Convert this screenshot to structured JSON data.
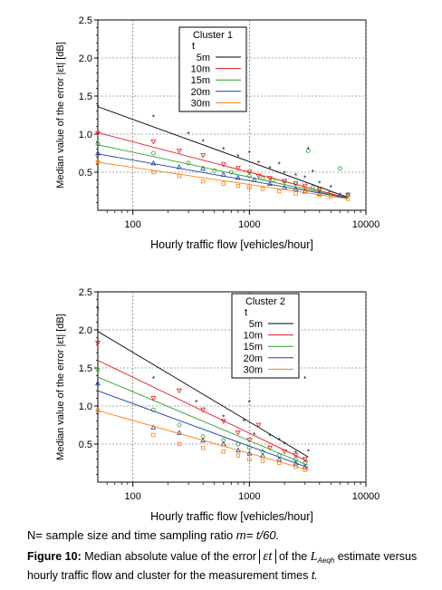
{
  "chart_data": [
    {
      "type": "scatter",
      "xlabel": "Hourly traffic flow [vehicles/hour]",
      "ylabel": "Median value of the error |εt| [dB]",
      "xscale": "log",
      "xlim": [
        50,
        10000
      ],
      "ylim": [
        0,
        2.5
      ],
      "xticks": [
        100,
        1000,
        10000
      ],
      "yticks": [
        0.5,
        1.0,
        1.5,
        2.0,
        2.5
      ],
      "ytick_labels": [
        "0.5",
        "1.0",
        "1.5",
        "2.0",
        "2.5"
      ],
      "grid": true,
      "legend_title": "Cluster 1",
      "legend_subtitle": "t",
      "legend_placement": "top-right",
      "series": [
        {
          "name": "5m",
          "color": "#000000",
          "marker": "star",
          "fit": [
            [
              50,
              1.36
            ],
            [
              7000,
              0.17
            ]
          ],
          "points": [
            [
              50,
              1.35
            ],
            [
              150,
              1.22
            ],
            [
              300,
              1.0
            ],
            [
              400,
              0.9
            ],
            [
              600,
              0.8
            ],
            [
              800,
              0.7
            ],
            [
              1000,
              0.75
            ],
            [
              1200,
              0.62
            ],
            [
              1500,
              0.55
            ],
            [
              1800,
              0.6
            ],
            [
              2000,
              0.48
            ],
            [
              2500,
              0.45
            ],
            [
              3000,
              0.42
            ],
            [
              3200,
              0.8
            ],
            [
              3500,
              0.5
            ],
            [
              4000,
              0.35
            ],
            [
              5000,
              0.3
            ],
            [
              7000,
              0.2
            ]
          ]
        },
        {
          "name": "10m",
          "color": "#e31a1c",
          "marker": "triangle-down",
          "fit": [
            [
              50,
              1.02
            ],
            [
              7000,
              0.16
            ]
          ],
          "points": [
            [
              50,
              1.01
            ],
            [
              150,
              0.9
            ],
            [
              250,
              0.78
            ],
            [
              400,
              0.72
            ],
            [
              600,
              0.6
            ],
            [
              800,
              0.55
            ],
            [
              1000,
              0.5
            ],
            [
              1200,
              0.45
            ],
            [
              1500,
              0.42
            ],
            [
              2000,
              0.38
            ],
            [
              2500,
              0.35
            ],
            [
              3000,
              0.32
            ],
            [
              4000,
              0.28
            ],
            [
              5000,
              0.22
            ],
            [
              7000,
              0.2
            ]
          ]
        },
        {
          "name": "15m",
          "color": "#2ca02c",
          "marker": "circle",
          "fit": [
            [
              50,
              0.86
            ],
            [
              7000,
              0.16
            ]
          ],
          "points": [
            [
              50,
              0.87
            ],
            [
              150,
              0.75
            ],
            [
              300,
              0.62
            ],
            [
              500,
              0.52
            ],
            [
              700,
              0.5
            ],
            [
              1000,
              0.45
            ],
            [
              1300,
              0.42
            ],
            [
              1600,
              0.4
            ],
            [
              2000,
              0.38
            ],
            [
              2500,
              0.35
            ],
            [
              3200,
              0.78
            ],
            [
              3500,
              0.3
            ],
            [
              4000,
              0.27
            ],
            [
              6000,
              0.55
            ],
            [
              7000,
              0.2
            ]
          ]
        },
        {
          "name": "20m",
          "color": "#1f3fa0",
          "marker": "triangle-up",
          "fit": [
            [
              50,
              0.74
            ],
            [
              7000,
              0.16
            ]
          ],
          "points": [
            [
              50,
              0.75
            ],
            [
              150,
              0.62
            ],
            [
              250,
              0.57
            ],
            [
              400,
              0.55
            ],
            [
              600,
              0.47
            ],
            [
              800,
              0.43
            ],
            [
              1100,
              0.4
            ],
            [
              1500,
              0.35
            ],
            [
              2000,
              0.3
            ],
            [
              2500,
              0.28
            ],
            [
              3000,
              0.25
            ],
            [
              4000,
              0.22
            ],
            [
              6000,
              0.2
            ]
          ]
        },
        {
          "name": "30m",
          "color": "#ff7f0e",
          "marker": "square",
          "fit": [
            [
              50,
              0.63
            ],
            [
              7000,
              0.15
            ]
          ],
          "points": [
            [
              50,
              0.63
            ],
            [
              150,
              0.5
            ],
            [
              250,
              0.45
            ],
            [
              400,
              0.38
            ],
            [
              600,
              0.35
            ],
            [
              800,
              0.32
            ],
            [
              1000,
              0.3
            ],
            [
              1300,
              0.28
            ],
            [
              1800,
              0.25
            ],
            [
              2500,
              0.22
            ],
            [
              3000,
              0.28
            ],
            [
              4000,
              0.2
            ],
            [
              5000,
              0.18
            ],
            [
              7000,
              0.15
            ]
          ]
        }
      ]
    },
    {
      "type": "scatter",
      "xlabel": "Hourly traffic flow [vehicles/hour]",
      "ylabel": "Median value of the error |εt| [dB]",
      "xscale": "log",
      "xlim": [
        50,
        10000
      ],
      "ylim": [
        0,
        2.5
      ],
      "xticks": [
        100,
        1000,
        10000
      ],
      "yticks": [
        0.5,
        1.0,
        1.5,
        2.0,
        2.5
      ],
      "ytick_labels": [
        "0.5",
        "1.0",
        "1.5",
        "2.0",
        "2.5"
      ],
      "grid": true,
      "legend_title": "Cluster 2",
      "legend_subtitle": "t",
      "legend_placement": "top-right",
      "series": [
        {
          "name": "5m",
          "color": "#000000",
          "marker": "star",
          "fit": [
            [
              50,
              1.98
            ],
            [
              3200,
              0.33
            ]
          ],
          "points": [
            [
              50,
              2.27
            ],
            [
              150,
              1.36
            ],
            [
              350,
              1.05
            ],
            [
              600,
              0.85
            ],
            [
              900,
              0.8
            ],
            [
              1000,
              1.05
            ],
            [
              1100,
              0.62
            ],
            [
              1500,
              0.6
            ],
            [
              1800,
              0.55
            ],
            [
              2000,
              0.5
            ],
            [
              2500,
              0.38
            ],
            [
              3000,
              1.36
            ],
            [
              3200,
              0.4
            ]
          ]
        },
        {
          "name": "10m",
          "color": "#e31a1c",
          "marker": "triangle-down",
          "fit": [
            [
              50,
              1.6
            ],
            [
              3200,
              0.27
            ]
          ],
          "points": [
            [
              50,
              1.83
            ],
            [
              150,
              1.1
            ],
            [
              250,
              1.2
            ],
            [
              400,
              0.95
            ],
            [
              600,
              0.8
            ],
            [
              800,
              0.65
            ],
            [
              1000,
              0.55
            ],
            [
              1200,
              0.75
            ],
            [
              1500,
              0.45
            ],
            [
              2000,
              0.4
            ],
            [
              2500,
              0.35
            ],
            [
              3000,
              0.3
            ]
          ]
        },
        {
          "name": "15m",
          "color": "#2ca02c",
          "marker": "circle",
          "fit": [
            [
              50,
              1.38
            ],
            [
              3200,
              0.22
            ]
          ],
          "points": [
            [
              50,
              1.48
            ],
            [
              150,
              0.95
            ],
            [
              250,
              0.75
            ],
            [
              400,
              0.6
            ],
            [
              600,
              0.55
            ],
            [
              800,
              0.5
            ],
            [
              1000,
              0.45
            ],
            [
              1300,
              0.4
            ],
            [
              1800,
              0.35
            ],
            [
              2500,
              0.3
            ],
            [
              3000,
              0.25
            ]
          ]
        },
        {
          "name": "20m",
          "color": "#1f3fa0",
          "marker": "triangle-up",
          "fit": [
            [
              50,
              1.2
            ],
            [
              3200,
              0.19
            ]
          ],
          "points": [
            [
              50,
              1.3
            ],
            [
              150,
              0.72
            ],
            [
              250,
              0.65
            ],
            [
              400,
              0.55
            ],
            [
              600,
              0.5
            ],
            [
              800,
              0.42
            ],
            [
              1000,
              0.38
            ],
            [
              1300,
              0.35
            ],
            [
              1800,
              0.3
            ],
            [
              2500,
              0.25
            ],
            [
              3000,
              0.2
            ]
          ]
        },
        {
          "name": "30m",
          "color": "#ff7f0e",
          "marker": "square",
          "fit": [
            [
              50,
              0.94
            ],
            [
              3200,
              0.16
            ]
          ],
          "points": [
            [
              50,
              0.94
            ],
            [
              150,
              0.62
            ],
            [
              250,
              0.5
            ],
            [
              400,
              0.45
            ],
            [
              600,
              0.4
            ],
            [
              800,
              0.35
            ],
            [
              1000,
              0.3
            ],
            [
              1300,
              0.28
            ],
            [
              1800,
              0.25
            ],
            [
              2500,
              0.2
            ],
            [
              3000,
              0.16
            ]
          ]
        }
      ]
    }
  ],
  "caption": {
    "note": "N= sample size and time sampling ratio",
    "note_math": "m= t/60.",
    "figure_label": "Figure 10:",
    "text_before": "Median absolute value of the error",
    "error_symbol": "εt",
    "text_middle": "of the",
    "estimate_symbol": "L",
    "estimate_subscript": "Aeqh",
    "text_after": "estimate versus hourly traffic flow and cluster for the measurement times",
    "final_symbol": "t."
  }
}
